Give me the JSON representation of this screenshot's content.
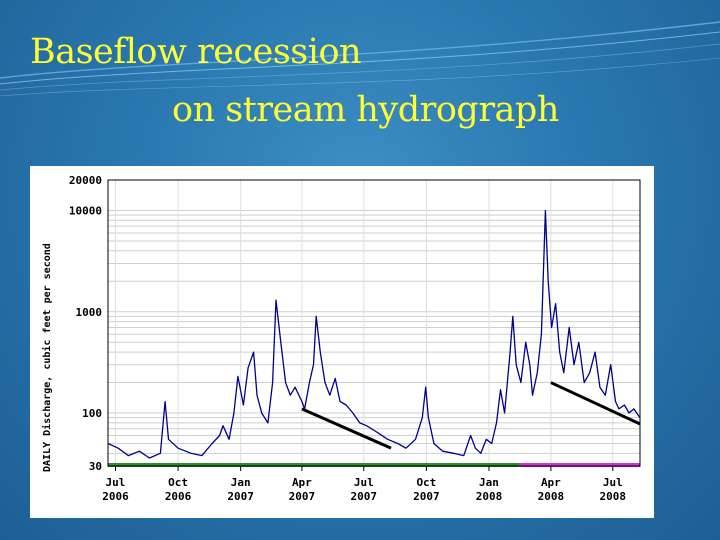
{
  "slide": {
    "title_line1": "Baseflow recession",
    "title_line2": "on stream hydrograph"
  },
  "colors": {
    "series": "#00008b",
    "trend": "#000000",
    "period_approved": "#2e8b2e",
    "period_provisional": "#d633d6",
    "title": "#ffff33"
  },
  "chart_data": {
    "type": "line",
    "ylabel": "DAILY Discharge, cubic feet per second",
    "yscale": "log",
    "ylim": [
      30,
      20000
    ],
    "ytick_labels": [
      "20000",
      "10000",
      "1000",
      "100",
      "30"
    ],
    "yticks": [
      20000,
      10000,
      1000,
      100,
      30
    ],
    "xlim": [
      "2006-06-20",
      "2008-08-10"
    ],
    "xticks": [
      {
        "date": "2006-07-01",
        "line1": "Jul",
        "line2": "2006"
      },
      {
        "date": "2006-10-01",
        "line1": "Oct",
        "line2": "2006"
      },
      {
        "date": "2007-01-01",
        "line1": "Jan",
        "line2": "2007"
      },
      {
        "date": "2007-04-01",
        "line1": "Apr",
        "line2": "2007"
      },
      {
        "date": "2007-07-01",
        "line1": "Jul",
        "line2": "2007"
      },
      {
        "date": "2007-10-01",
        "line1": "Oct",
        "line2": "2007"
      },
      {
        "date": "2008-01-01",
        "line1": "Jan",
        "line2": "2008"
      },
      {
        "date": "2008-04-01",
        "line1": "Apr",
        "line2": "2008"
      },
      {
        "date": "2008-07-01",
        "line1": "Jul",
        "line2": "2008"
      }
    ],
    "grid": true,
    "series": [
      {
        "points": [
          [
            "2006-06-20",
            50
          ],
          [
            "2006-07-05",
            45
          ],
          [
            "2006-07-20",
            38
          ],
          [
            "2006-08-05",
            42
          ],
          [
            "2006-08-20",
            36
          ],
          [
            "2006-09-05",
            40
          ],
          [
            "2006-09-12",
            130
          ],
          [
            "2006-09-17",
            55
          ],
          [
            "2006-10-01",
            45
          ],
          [
            "2006-10-20",
            40
          ],
          [
            "2006-11-05",
            38
          ],
          [
            "2006-11-20",
            50
          ],
          [
            "2006-12-01",
            60
          ],
          [
            "2006-12-06",
            75
          ],
          [
            "2006-12-15",
            55
          ],
          [
            "2006-12-22",
            100
          ],
          [
            "2006-12-28",
            230
          ],
          [
            "2007-01-05",
            120
          ],
          [
            "2007-01-12",
            280
          ],
          [
            "2007-01-20",
            400
          ],
          [
            "2007-01-25",
            150
          ],
          [
            "2007-02-01",
            100
          ],
          [
            "2007-02-10",
            80
          ],
          [
            "2007-02-17",
            200
          ],
          [
            "2007-02-22",
            1300
          ],
          [
            "2007-03-01",
            500
          ],
          [
            "2007-03-08",
            200
          ],
          [
            "2007-03-15",
            150
          ],
          [
            "2007-03-22",
            180
          ],
          [
            "2007-04-01",
            130
          ],
          [
            "2007-04-05",
            110
          ],
          [
            "2007-04-12",
            200
          ],
          [
            "2007-04-18",
            300
          ],
          [
            "2007-04-22",
            900
          ],
          [
            "2007-04-28",
            400
          ],
          [
            "2007-05-05",
            200
          ],
          [
            "2007-05-12",
            150
          ],
          [
            "2007-05-20",
            220
          ],
          [
            "2007-05-27",
            130
          ],
          [
            "2007-06-05",
            120
          ],
          [
            "2007-06-15",
            100
          ],
          [
            "2007-06-25",
            80
          ],
          [
            "2007-07-05",
            75
          ],
          [
            "2007-07-20",
            65
          ],
          [
            "2007-08-05",
            55
          ],
          [
            "2007-08-20",
            50
          ],
          [
            "2007-09-01",
            45
          ],
          [
            "2007-09-15",
            55
          ],
          [
            "2007-09-25",
            90
          ],
          [
            "2007-09-30",
            180
          ],
          [
            "2007-10-04",
            90
          ],
          [
            "2007-10-12",
            50
          ],
          [
            "2007-10-25",
            42
          ],
          [
            "2007-11-10",
            40
          ],
          [
            "2007-11-25",
            38
          ],
          [
            "2007-12-05",
            60
          ],
          [
            "2007-12-12",
            45
          ],
          [
            "2007-12-20",
            40
          ],
          [
            "2007-12-28",
            55
          ],
          [
            "2008-01-05",
            50
          ],
          [
            "2008-01-12",
            80
          ],
          [
            "2008-01-18",
            170
          ],
          [
            "2008-01-24",
            100
          ],
          [
            "2008-02-01",
            400
          ],
          [
            "2008-02-05",
            900
          ],
          [
            "2008-02-10",
            300
          ],
          [
            "2008-02-17",
            200
          ],
          [
            "2008-02-24",
            500
          ],
          [
            "2008-03-01",
            300
          ],
          [
            "2008-03-05",
            150
          ],
          [
            "2008-03-12",
            250
          ],
          [
            "2008-03-18",
            600
          ],
          [
            "2008-03-24",
            10000
          ],
          [
            "2008-03-28",
            2000
          ],
          [
            "2008-04-02",
            700
          ],
          [
            "2008-04-08",
            1200
          ],
          [
            "2008-04-14",
            400
          ],
          [
            "2008-04-20",
            250
          ],
          [
            "2008-04-28",
            700
          ],
          [
            "2008-05-05",
            300
          ],
          [
            "2008-05-12",
            500
          ],
          [
            "2008-05-20",
            200
          ],
          [
            "2008-05-28",
            250
          ],
          [
            "2008-06-05",
            400
          ],
          [
            "2008-06-12",
            180
          ],
          [
            "2008-06-20",
            150
          ],
          [
            "2008-06-28",
            300
          ],
          [
            "2008-07-05",
            130
          ],
          [
            "2008-07-10",
            110
          ],
          [
            "2008-07-18",
            120
          ],
          [
            "2008-07-25",
            100
          ],
          [
            "2008-08-01",
            110
          ],
          [
            "2008-08-10",
            90
          ]
        ]
      }
    ],
    "annotations": [
      {
        "type": "trend-line",
        "from": [
          "2007-04-01",
          110
        ],
        "to": [
          "2007-08-10",
          45
        ]
      },
      {
        "type": "trend-line",
        "from": [
          "2008-04-01",
          200
        ],
        "to": [
          "2008-08-10",
          78
        ]
      }
    ],
    "period_bars": [
      {
        "from": "2006-06-20",
        "to": "2008-02-15",
        "color_key": "period_approved"
      },
      {
        "from": "2008-02-15",
        "to": "2008-08-10",
        "color_key": "period_provisional"
      }
    ]
  }
}
